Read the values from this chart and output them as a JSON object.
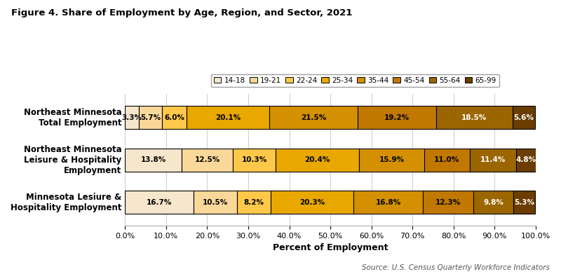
{
  "title": "Figure 4. Share of Employment by Age, Region, and Sector, 2021",
  "xlabel": "Percent of Employment",
  "source": "Source: U.S. Census Quarterly Workforce Indicators",
  "categories": [
    "Northeast Minnesota\nTotal Employment",
    "Northeast Minnesota\nLeisure & Hospitality\nEmployment",
    "Minnesota Lesiure &\nHospitality Employment"
  ],
  "age_groups": [
    "14-18",
    "19-21",
    "22-24",
    "25-34",
    "35-44",
    "45-54",
    "55-64",
    "65-99"
  ],
  "colors": [
    "#F5E6CC",
    "#FAD89A",
    "#FFC84A",
    "#E8A800",
    "#D49000",
    "#C07800",
    "#9B6600",
    "#6B3D00"
  ],
  "data": [
    [
      3.3,
      5.7,
      6.0,
      20.1,
      21.5,
      19.2,
      18.5,
      5.6
    ],
    [
      13.8,
      12.5,
      10.3,
      20.4,
      15.9,
      11.0,
      11.4,
      4.8
    ],
    [
      16.7,
      10.5,
      8.2,
      20.3,
      16.8,
      12.3,
      9.8,
      5.3
    ]
  ],
  "label_colors": [
    [
      "black",
      "black",
      "black",
      "black",
      "black",
      "black",
      "white",
      "white"
    ],
    [
      "black",
      "black",
      "black",
      "black",
      "black",
      "black",
      "white",
      "white"
    ],
    [
      "black",
      "black",
      "black",
      "black",
      "black",
      "black",
      "white",
      "white"
    ]
  ],
  "bar_height": 0.55,
  "figsize": [
    8.0,
    3.91
  ],
  "dpi": 100
}
